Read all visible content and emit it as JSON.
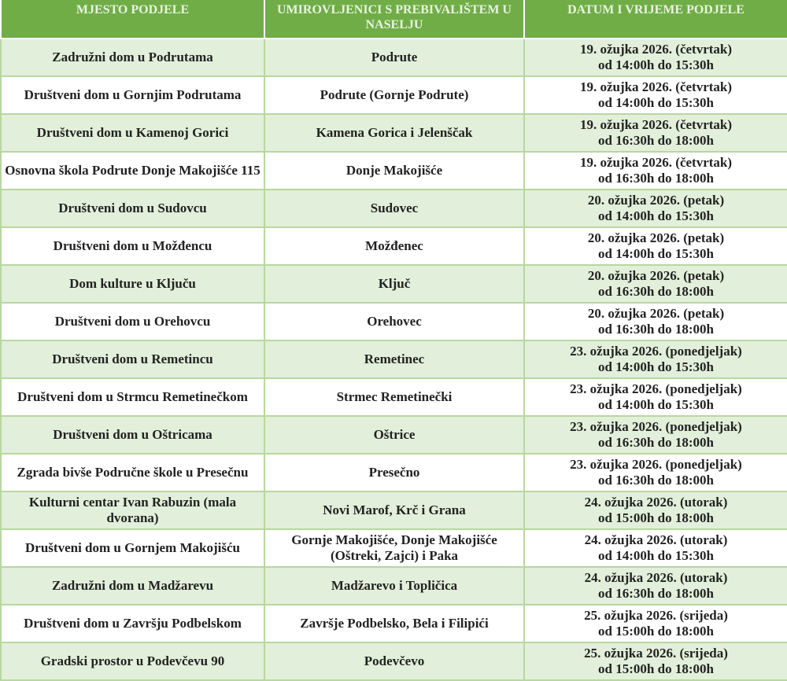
{
  "header": [
    "MJESTO PODJELE",
    "UMIROVLJENICI S PREBIVALIŠTEM U NASELJU",
    "DATUM I VRIJEME PODJELE"
  ],
  "colors": {
    "header_bg": "#70ad47",
    "row_alt_bg": "#e2efda",
    "border": "#b7d7a0"
  },
  "rows": [
    {
      "place": "Zadružni dom u Podrutama",
      "residents": "Podrute",
      "date": "19. ožujka 2026. (četvrtak)",
      "time": "od 14:00h do 15:30h"
    },
    {
      "place": "Društveni dom u Gornjim Podrutama",
      "residents": "Podrute (Gornje Podrute)",
      "date": "19. ožujka 2026. (četvrtak)",
      "time": "od 14:00h do 15:30h"
    },
    {
      "place": "Društveni dom u Kamenoj Gorici",
      "residents": "Kamena Gorica i Jelenščak",
      "date": "19. ožujka 2026. (četvrtak)",
      "time": "od 16:30h do 18:00h"
    },
    {
      "place": "Osnovna škola Podrute Donje Makojišće 115",
      "residents": "Donje Makojišće",
      "date": "19. ožujka 2026. (četvrtak)",
      "time": "od 16:30h do 18:00h"
    },
    {
      "place": "Društveni dom u Sudovcu",
      "residents": "Sudovec",
      "date": "20. ožujka 2026. (petak)",
      "time": "od 14:00h do 15:30h"
    },
    {
      "place": "Društveni dom u Možđencu",
      "residents": "Možđenec",
      "date": "20. ožujka 2026. (petak)",
      "time": "od 14:00h do 15:30h"
    },
    {
      "place": "Dom kulture u Ključu",
      "residents": "Ključ",
      "date": "20. ožujka 2026. (petak)",
      "time": "od 16:30h do 18:00h"
    },
    {
      "place": "Društveni dom u Orehovcu",
      "residents": "Orehovec",
      "date": "20. ožujka 2026. (petak)",
      "time": "od 16:30h do 18:00h"
    },
    {
      "place": "Društveni dom u Remetincu",
      "residents": "Remetinec",
      "date": "23. ožujka 2026. (ponedjeljak)",
      "time": "od 14:00h do 15:30h"
    },
    {
      "place": "Društveni dom u Strmcu Remetinečkom",
      "residents": "Strmec Remetinečki",
      "date": "23. ožujka 2026. (ponedjeljak)",
      "time": "od 14:00h do 15:30h"
    },
    {
      "place": "Društveni dom u Oštricama",
      "residents": "Oštrice",
      "date": "23. ožujka 2026. (ponedjeljak)",
      "time": "od 16:30h do 18:00h"
    },
    {
      "place": "Zgrada bivše Područne škole u Presečnu",
      "residents": "Presečno",
      "date": "23. ožujka 2026. (ponedjeljak)",
      "time": "od 16:30h do 18:00h"
    },
    {
      "place": "Kulturni centar Ivan Rabuzin (mala dvorana)",
      "residents": "Novi Marof, Krč i Grana",
      "date": "24. ožujka 2026. (utorak)",
      "time": "od 15:00h do 18:00h"
    },
    {
      "place": "Društveni dom u Gornjem Makojišću",
      "residents": "Gornje Makojišće, Donje Makojišće (Oštreki, Zajci) i Paka",
      "date": "24. ožujka 2026. (utorak)",
      "time": "od 14:00h do 15:30h"
    },
    {
      "place": "Zadružni dom u Madžarevu",
      "residents": "Madžarevo i Topličica",
      "date": "24. ožujka 2026. (utorak)",
      "time": "od 16:30h do 18:00h"
    },
    {
      "place": "Društveni dom u Završju Podbelskom",
      "residents": "Završje Podbelsko, Bela i Filipići",
      "date": "25. ožujka 2026. (srijeda)",
      "time": "od 15:00h do 18:00h"
    },
    {
      "place": "Gradski prostor u Podevčevu 90",
      "residents": "Podevčevo",
      "date": "25. ožujka 2026. (srijeda)",
      "time": "od 15:00h do 18:00h"
    }
  ]
}
